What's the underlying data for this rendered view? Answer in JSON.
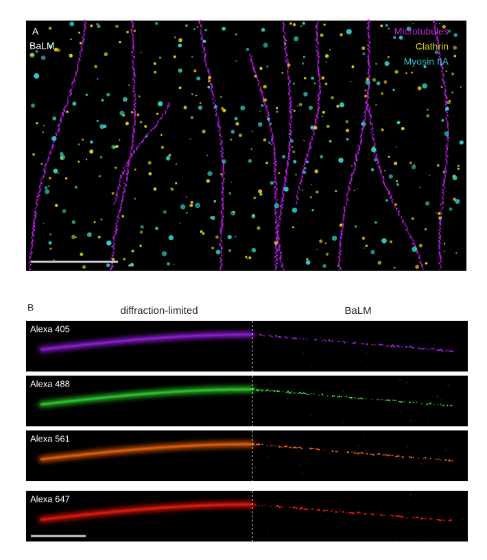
{
  "panel_a": {
    "label": "A",
    "method": "BaLM",
    "legend": [
      "Microtubules",
      "Clathrin",
      "Myosin IIA"
    ]
  },
  "panel_b": {
    "label": "B",
    "headers": [
      "diffraction-limited",
      "BaLM"
    ],
    "strips": [
      "Alexa 405",
      "Alexa 488",
      "Alexa 561",
      "Alexa 647"
    ]
  }
}
